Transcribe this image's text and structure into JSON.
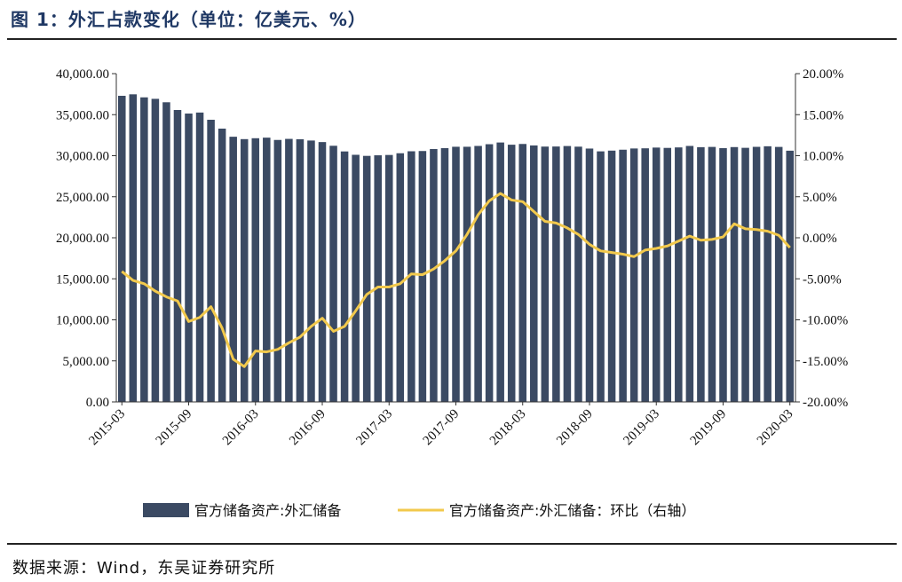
{
  "header": {
    "title": "图 1：外汇占款变化（单位：亿美元、%）"
  },
  "footer": {
    "source": "数据来源：Wind，东吴证券研究所"
  },
  "colors": {
    "bar": "#3b4a63",
    "line": "#f2c94c",
    "title": "#1f3864"
  },
  "chart_data": {
    "type": "bar",
    "x": [
      "2015-03",
      "2015-04",
      "2015-05",
      "2015-06",
      "2015-07",
      "2015-08",
      "2015-09",
      "2015-10",
      "2015-11",
      "2015-12",
      "2016-01",
      "2016-02",
      "2016-03",
      "2016-04",
      "2016-05",
      "2016-06",
      "2016-07",
      "2016-08",
      "2016-09",
      "2016-10",
      "2016-11",
      "2016-12",
      "2017-01",
      "2017-02",
      "2017-03",
      "2017-04",
      "2017-05",
      "2017-06",
      "2017-07",
      "2017-08",
      "2017-09",
      "2017-10",
      "2017-11",
      "2017-12",
      "2018-01",
      "2018-02",
      "2018-03",
      "2018-04",
      "2018-05",
      "2018-06",
      "2018-07",
      "2018-08",
      "2018-09",
      "2018-10",
      "2018-11",
      "2018-12",
      "2019-01",
      "2019-02",
      "2019-03",
      "2019-04",
      "2019-05",
      "2019-06",
      "2019-07",
      "2019-08",
      "2019-09",
      "2019-10",
      "2019-11",
      "2019-12",
      "2020-01",
      "2020-02",
      "2020-03"
    ],
    "x_tick_labels": [
      "2015-03",
      "2015-09",
      "2016-03",
      "2016-09",
      "2017-03",
      "2017-09",
      "2018-03",
      "2018-09",
      "2019-03",
      "2019-09",
      "2020-03"
    ],
    "series": [
      {
        "name": "官方储备资产:外汇储备",
        "type": "bar",
        "axis": "left",
        "values": [
          37300,
          37480,
          37110,
          36930,
          36510,
          35570,
          35140,
          35260,
          34380,
          33300,
          32310,
          32020,
          32130,
          32200,
          31920,
          32050,
          32010,
          31850,
          31660,
          31210,
          30520,
          30110,
          29980,
          30050,
          30090,
          30300,
          30540,
          30570,
          30810,
          30920,
          31090,
          31090,
          31190,
          31400,
          31610,
          31340,
          31430,
          31250,
          31110,
          31120,
          31180,
          31100,
          30870,
          30530,
          30620,
          30730,
          30880,
          30900,
          30990,
          30950,
          31010,
          31190,
          31040,
          31070,
          30920,
          31050,
          30960,
          31080,
          31150,
          31070,
          30610
        ]
      },
      {
        "name": "官方储备资产:外汇储备：环比（右轴）",
        "type": "line",
        "axis": "right",
        "values": [
          -4.1,
          -5.2,
          -5.6,
          -6.5,
          -7.2,
          -7.7,
          -10.2,
          -9.7,
          -8.4,
          -11.0,
          -14.8,
          -15.7,
          -13.8,
          -13.9,
          -13.6,
          -12.8,
          -12.1,
          -10.8,
          -9.8,
          -11.4,
          -10.8,
          -8.9,
          -6.9,
          -6.0,
          -6.0,
          -5.6,
          -4.4,
          -4.5,
          -3.8,
          -2.8,
          -1.6,
          0.4,
          2.8,
          4.5,
          5.4,
          4.6,
          4.4,
          3.2,
          2.0,
          1.8,
          1.2,
          0.4,
          -0.8,
          -1.6,
          -1.8,
          -2.0,
          -2.3,
          -1.5,
          -1.3,
          -1.0,
          -0.4,
          0.2,
          -0.3,
          -0.2,
          0.1,
          1.7,
          1.1,
          1.0,
          0.8,
          0.3,
          -1.2
        ]
      }
    ],
    "y_left": {
      "ylim": [
        0,
        40000
      ],
      "ticks": [
        "0.00",
        "5,000.00",
        "10,000.00",
        "15,000.00",
        "20,000.00",
        "25,000.00",
        "30,000.00",
        "35,000.00",
        "40,000.00"
      ]
    },
    "y_right": {
      "ylim": [
        -20,
        20
      ],
      "ticks": [
        "-20.00%",
        "-15.00%",
        "-10.00%",
        "-5.00%",
        "0.00%",
        "5.00%",
        "10.00%",
        "15.00%",
        "20.00%"
      ]
    },
    "legend": {
      "placement": "bottom",
      "items": [
        "官方储备资产:外汇储备",
        "官方储备资产:外汇储备：环比（右轴）"
      ]
    },
    "grid": false
  }
}
